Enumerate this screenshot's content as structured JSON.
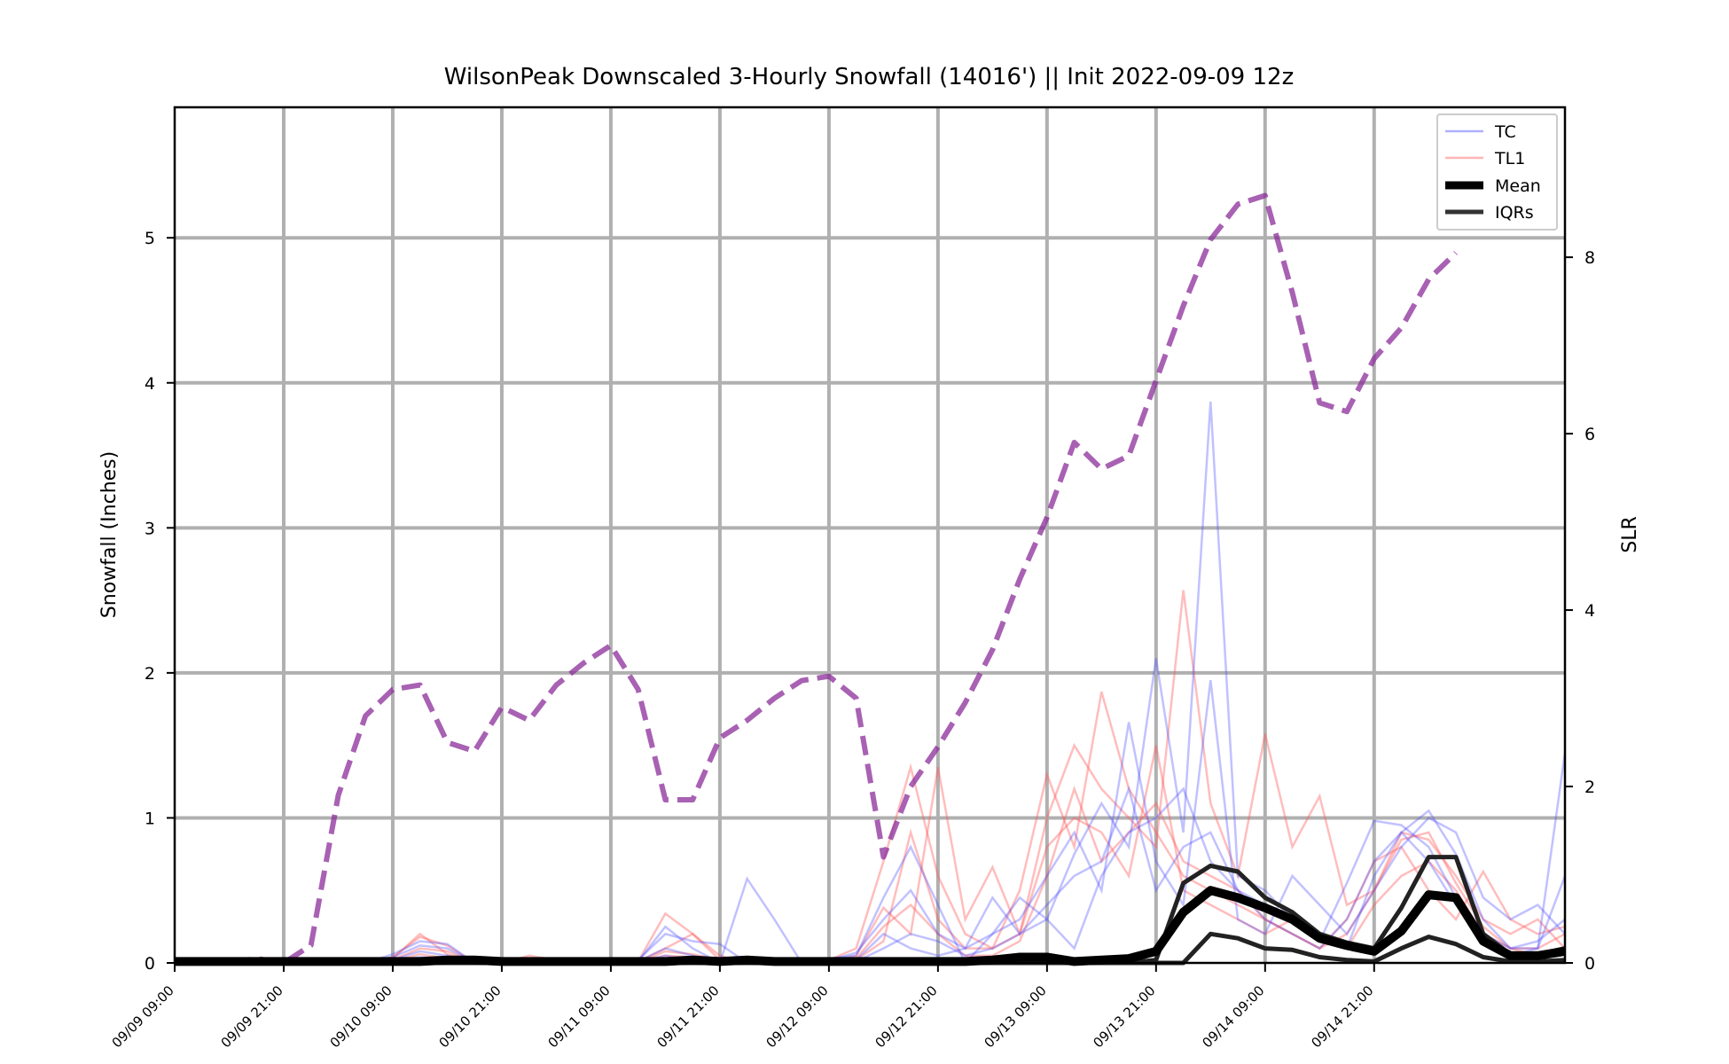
{
  "chart_data": {
    "type": "line",
    "title": "WilsonPeak Downscaled 3-Hourly Snowfall (14016') || Init 2022-09-09 12z",
    "ylabel": "Snowfall (Inches)",
    "y2label": "SLR",
    "ylim": [
      0,
      5.9
    ],
    "y2lim": [
      0,
      9.7
    ],
    "yticks": [
      0,
      1,
      2,
      3,
      4,
      5
    ],
    "y2ticks": [
      0,
      2,
      4,
      6,
      8
    ],
    "x_step_hours": 3,
    "xticks": [
      "09/09 09:00",
      "09/09 21:00",
      "09/10 09:00",
      "09/10 21:00",
      "09/11 09:00",
      "09/11 21:00",
      "09/12 09:00",
      "09/12 21:00",
      "09/13 09:00",
      "09/13 21:00",
      "09/14 09:00",
      "09/14 21:00"
    ],
    "grid": true,
    "legend_position": "top-right",
    "legend": [
      {
        "label": "TC",
        "color": "#4d4dff",
        "style": "thin"
      },
      {
        "label": "TL1",
        "color": "#ff5a5a",
        "style": "thin"
      },
      {
        "label": "Mean",
        "color": "#000000",
        "style": "thick"
      },
      {
        "label": "IQRs",
        "color": "#333333",
        "style": "medium"
      }
    ],
    "colors": {
      "tc": "#4d4dff",
      "tl1": "#ff5a5a",
      "slr": "#8b2c99",
      "mean": "#000000",
      "iqr": "#222222"
    },
    "series": [
      {
        "name": "Mean",
        "axis": "left",
        "values": [
          0.01,
          0.01,
          0.01,
          0.01,
          0.01,
          0.01,
          0.01,
          0.01,
          0.01,
          0.01,
          0.02,
          0.02,
          0.01,
          0.01,
          0.01,
          0.01,
          0.01,
          0.01,
          0.01,
          0.02,
          0.01,
          0.02,
          0.01,
          0.01,
          0.01,
          0.01,
          0.01,
          0.01,
          0.01,
          0.01,
          0.02,
          0.04,
          0.04,
          0.01,
          0.02,
          0.03,
          0.08,
          0.35,
          0.5,
          0.45,
          0.38,
          0.3,
          0.17,
          0.12,
          0.08,
          0.22,
          0.47,
          0.45,
          0.15,
          0.05,
          0.05,
          0.08
        ]
      },
      {
        "name": "IQRs",
        "axis": "left",
        "values": [
          0.0,
          0.0,
          0.0,
          0.0,
          0.0,
          0.0,
          0.0,
          0.0,
          0.0,
          0.0,
          0.0,
          0.0,
          0.0,
          0.0,
          0.0,
          0.0,
          0.0,
          0.0,
          0.0,
          0.0,
          0.0,
          0.0,
          0.0,
          0.0,
          0.0,
          0.0,
          0.0,
          0.0,
          0.0,
          0.0,
          0.0,
          0.0,
          0.0,
          0.0,
          0.0,
          0.0,
          0.02,
          0.55,
          0.67,
          0.63,
          0.45,
          0.35,
          0.2,
          0.14,
          0.1,
          0.38,
          0.73,
          0.73,
          0.2,
          0.06,
          0.06,
          0.1
        ]
      },
      {
        "name": "IQRs",
        "axis": "left",
        "values": [
          0.0,
          0.0,
          0.0,
          0.0,
          0.0,
          0.0,
          0.0,
          0.0,
          0.0,
          0.0,
          0.0,
          0.0,
          0.0,
          0.0,
          0.0,
          0.0,
          0.0,
          0.0,
          0.0,
          0.0,
          0.0,
          0.0,
          0.0,
          0.0,
          0.0,
          0.0,
          0.0,
          0.0,
          0.0,
          0.0,
          0.0,
          0.0,
          0.0,
          0.0,
          0.0,
          0.0,
          0.0,
          0.0,
          0.2,
          0.17,
          0.1,
          0.09,
          0.04,
          0.02,
          0.01,
          0.1,
          0.18,
          0.13,
          0.04,
          0.01,
          0.01,
          0.02
        ]
      },
      {
        "name": "SLR",
        "axis": "right",
        "values": [
          0.0,
          0.0,
          0.0,
          0.05,
          0.0,
          0.2,
          1.9,
          2.8,
          3.1,
          3.15,
          2.5,
          2.4,
          2.9,
          2.75,
          3.15,
          3.4,
          3.6,
          3.1,
          1.85,
          1.85,
          2.55,
          2.75,
          3.0,
          3.2,
          3.25,
          3.0,
          1.2,
          2.0,
          2.45,
          2.95,
          3.55,
          4.35,
          5.05,
          5.9,
          5.6,
          5.75,
          6.6,
          7.45,
          8.2,
          8.6,
          8.7,
          7.6,
          6.35,
          6.25,
          6.85,
          7.2,
          7.75,
          8.05
        ]
      }
    ],
    "ensemble_tc": [
      [
        0,
        0,
        0,
        0,
        0,
        0,
        0,
        0,
        0.04,
        0.12,
        0.1,
        0,
        0,
        0,
        0,
        0,
        0,
        0.02,
        0.2,
        0.15,
        0.13,
        0,
        0,
        0,
        0.03,
        0.05,
        0.45,
        0.8,
        0.4,
        0,
        0.2,
        0.45,
        0.3,
        0.1,
        0.6,
        0.9,
        1.0,
        1.2,
        0.7,
        0.5,
        0.4,
        0.3,
        0.2,
        0.1,
        0.6,
        0.9,
        1.05,
        0.75,
        0.3,
        0.1,
        0.15,
        0.3
      ],
      [
        0,
        0,
        0,
        0,
        0,
        0,
        0,
        0,
        0.06,
        0.15,
        0.13,
        0,
        0,
        0,
        0,
        0,
        0,
        0.01,
        0.25,
        0.1,
        0,
        0.58,
        0.3,
        0,
        0.02,
        0.07,
        0.3,
        0.5,
        0.2,
        0.1,
        0.45,
        0.2,
        0.3,
        0.75,
        1.1,
        0.8,
        2.1,
        0.9,
        3.87,
        0.6,
        0.5,
        0.3,
        0.15,
        0.55,
        0.98,
        0.95,
        0.8,
        0.45,
        0.2,
        0.05,
        0.1,
        1.45
      ],
      [
        0,
        0,
        0,
        0,
        0,
        0,
        0,
        0,
        0.02,
        0.08,
        0.05,
        0,
        0,
        0,
        0,
        0,
        0,
        0.01,
        0.1,
        0.05,
        0.02,
        0,
        0,
        0,
        0.01,
        0.02,
        0.2,
        0.1,
        0.05,
        0.1,
        0.2,
        0.3,
        0.6,
        0.9,
        0.5,
        1.66,
        0.7,
        0.4,
        1.95,
        0.3,
        0.2,
        0.6,
        0.4,
        0.2,
        0.5,
        0.8,
        1.0,
        0.9,
        0.45,
        0.3,
        0.4,
        0.2
      ],
      [
        0,
        0,
        0,
        0,
        0,
        0,
        0,
        0,
        0.01,
        0.04,
        0.03,
        0,
        0,
        0,
        0,
        0,
        0,
        0.01,
        0.05,
        0.02,
        0.01,
        0,
        0,
        0,
        0.01,
        0.01,
        0.1,
        0.2,
        0.15,
        0.05,
        0.1,
        0.2,
        0.4,
        0.6,
        0.7,
        1.2,
        0.5,
        0.8,
        0.9,
        0.5,
        0.3,
        0.2,
        0.1,
        0.3,
        0.7,
        0.9,
        0.7,
        0.4,
        0.2,
        0.1,
        0.1,
        0.6
      ]
    ],
    "ensemble_tl1": [
      [
        0,
        0,
        0,
        0,
        0,
        0,
        0,
        0,
        0.04,
        0.18,
        0.12,
        0,
        0,
        0.03,
        0.01,
        0,
        0,
        0.01,
        0.34,
        0.2,
        0.05,
        0,
        0,
        0,
        0.02,
        0.1,
        0.7,
        1.35,
        0.6,
        0.2,
        0.1,
        0.5,
        1.3,
        0.8,
        1.87,
        1.2,
        0.9,
        0.6,
        0.5,
        0.4,
        0.3,
        0.2,
        0.1,
        0.3,
        0.7,
        0.8,
        0.5,
        0.3,
        0.63,
        0.3,
        0.2,
        0.25
      ],
      [
        0,
        0,
        0,
        0,
        0,
        0,
        0,
        0,
        0.03,
        0.2,
        0.06,
        0,
        0,
        0.05,
        0.02,
        0,
        0,
        0.01,
        0.1,
        0.2,
        0.02,
        0,
        0,
        0,
        0.01,
        0.05,
        0.38,
        0.2,
        1.35,
        0.3,
        0.66,
        0.2,
        1.0,
        1.5,
        1.2,
        1.0,
        0.8,
        2.57,
        1.1,
        0.6,
        1.58,
        0.8,
        1.15,
        0.4,
        0.5,
        0.9,
        0.85,
        0.6,
        0.3,
        0.2,
        0.3,
        0.1
      ],
      [
        0,
        0,
        0,
        0,
        0,
        0,
        0,
        0,
        0.01,
        0.06,
        0.03,
        0,
        0,
        0.02,
        0.01,
        0,
        0,
        0,
        0.05,
        0.04,
        0.01,
        0,
        0,
        0,
        0,
        0.02,
        0.15,
        0.9,
        0.3,
        0.1,
        0.1,
        0.2,
        0.8,
        1.0,
        0.9,
        0.6,
        1.5,
        0.5,
        0.4,
        0.3,
        0.2,
        0.3,
        0.2,
        0.1,
        0.4,
        0.6,
        0.7,
        0.5,
        0.2,
        0.1,
        0.05,
        0.1
      ],
      [
        0,
        0,
        0,
        0,
        0,
        0,
        0,
        0,
        0.02,
        0.1,
        0.08,
        0,
        0,
        0.01,
        0.01,
        0,
        0,
        0,
        0.08,
        0.06,
        0.02,
        0,
        0,
        0,
        0,
        0.03,
        0.25,
        0.4,
        0.2,
        0.05,
        0.05,
        0.15,
        0.6,
        1.2,
        0.7,
        0.9,
        1.1,
        0.7,
        0.6,
        0.5,
        0.3,
        0.2,
        0.1,
        0.2,
        0.5,
        0.85,
        0.9,
        0.55,
        0.25,
        0.1,
        0.1,
        0.2
      ]
    ]
  }
}
